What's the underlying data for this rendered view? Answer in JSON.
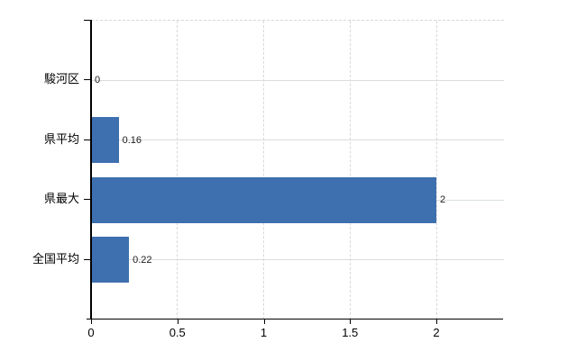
{
  "chart_data": {
    "type": "bar",
    "orientation": "horizontal",
    "title": "",
    "xlabel": "",
    "ylabel": "",
    "categories": [
      "駿河区",
      "県平均",
      "県最大",
      "全国平均"
    ],
    "values": [
      0,
      0.16,
      2,
      0.22
    ],
    "value_labels": [
      "0",
      "0.16",
      "2",
      "0.22"
    ],
    "x_ticks": [
      0,
      0.5,
      1,
      1.5,
      2
    ],
    "x_tick_labels": [
      "0",
      "0.5",
      "1",
      "1.5",
      "2"
    ],
    "xlim": [
      0,
      2.39
    ],
    "grid": true,
    "legend": false,
    "plot_border_top": "dashed",
    "bar_color": "#3e6fae"
  },
  "colors": {
    "bar": "#3e6fae",
    "grid_vertical": "#d8d8d8",
    "grid_horizontal": "#d9e0d8",
    "axis": "#000000",
    "text": "#000000",
    "background": "#ffffff"
  }
}
